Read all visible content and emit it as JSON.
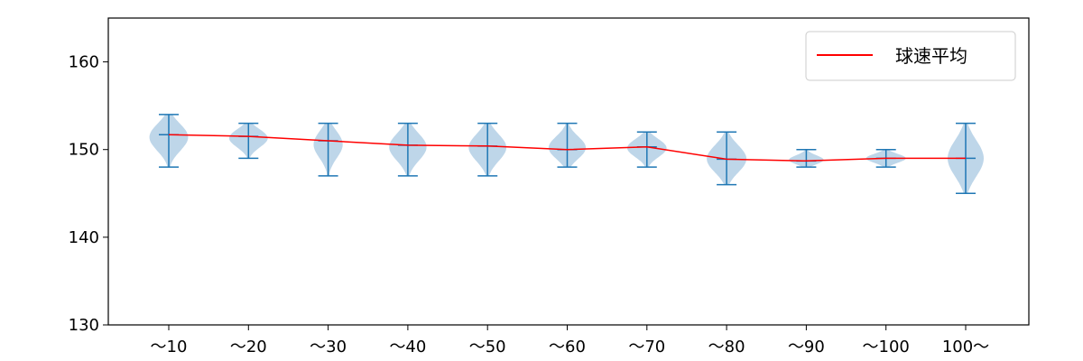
{
  "chart_data": {
    "type": "violin",
    "categories": [
      "〜10",
      "〜20",
      "〜30",
      "〜40",
      "〜50",
      "〜60",
      "〜70",
      "〜80",
      "〜90",
      "〜100",
      "100〜"
    ],
    "ylim": [
      130,
      165
    ],
    "yticks": [
      130,
      140,
      150,
      160
    ],
    "grid": false,
    "legend_placement": "top-right",
    "series": [
      {
        "name": "球速平均",
        "type": "line",
        "color": "#ff0000",
        "values": [
          151.7,
          151.5,
          151.0,
          150.5,
          150.4,
          150.0,
          150.3,
          148.9,
          148.7,
          149.0,
          149.0
        ]
      }
    ],
    "violins": {
      "color_fill": "#a8c8e2",
      "color_line": "#1f77b4",
      "min": [
        148,
        149,
        147,
        147,
        147,
        148,
        148,
        146,
        148,
        148,
        145
      ],
      "max": [
        154,
        153,
        153,
        153,
        153,
        153,
        152,
        152,
        150,
        150,
        153
      ],
      "mean": [
        151.7,
        151.5,
        151.0,
        150.5,
        150.4,
        150.0,
        150.3,
        148.9,
        148.7,
        149.0,
        149.0
      ],
      "max_half_width": [
        22,
        22,
        17,
        21,
        21,
        21,
        22,
        22,
        20,
        22,
        20
      ]
    }
  }
}
